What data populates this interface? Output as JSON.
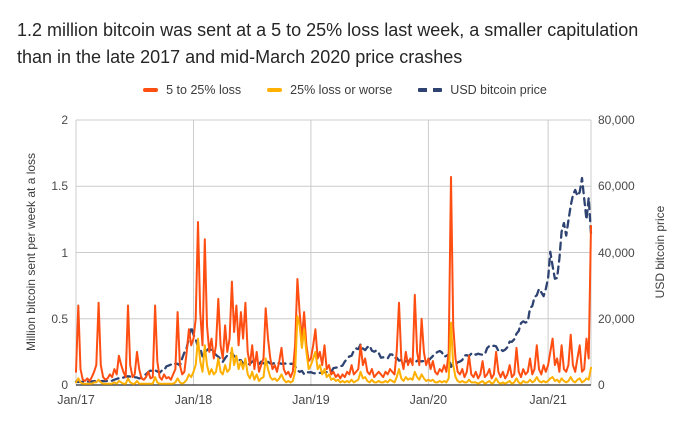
{
  "title": "1.2 million bitcoin was sent at a 5 to 25% loss last week, a smaller capitulation than in the late 2017 and mid-March 2020 price crashes",
  "colors": {
    "grid": "#cccccc",
    "axis_line": "#2b2b2b",
    "text": "#333333",
    "background": "#ffffff"
  },
  "chart_data": {
    "type": "line",
    "title": "1.2 million bitcoin was sent at a 5 to 25% loss last week, a smaller capitulation than in the late 2017 and mid-March 2020 price crashes",
    "grid": true,
    "legend_position": "top",
    "x": {
      "unit": "week",
      "start": "Jan 2017",
      "end": "May 2021",
      "tick_labels": [
        "Jan/17",
        "Jan/18",
        "Jan/19",
        "Jan/20",
        "Jan/21"
      ],
      "tick_week_index": [
        0,
        52,
        104,
        156,
        209
      ],
      "total_weeks": 229
    },
    "y_left": {
      "label": "Million bitcoin sent per week at a loss",
      "ticks": [
        "0",
        "0.5",
        "1",
        "1.5",
        "2"
      ],
      "range": [
        0,
        2
      ]
    },
    "y_right": {
      "label": "USD bitcoin price",
      "ticks": [
        "0",
        "20,000",
        "40,000",
        "60,000",
        "80,000"
      ],
      "range": [
        0,
        80000
      ]
    },
    "series": [
      {
        "name": "5 to 25% loss",
        "color": "#ff4e12",
        "line_style": "solid",
        "axis": "left",
        "values": [
          0.1,
          0.6,
          0.12,
          0.04,
          0.03,
          0.05,
          0.03,
          0.06,
          0.1,
          0.15,
          0.62,
          0.15,
          0.06,
          0.04,
          0.05,
          0.08,
          0.06,
          0.12,
          0.08,
          0.22,
          0.15,
          0.1,
          0.06,
          0.6,
          0.15,
          0.06,
          0.08,
          0.25,
          0.12,
          0.05,
          0.04,
          0.06,
          0.1,
          0.05,
          0.06,
          0.6,
          0.18,
          0.06,
          0.04,
          0.08,
          0.05,
          0.06,
          0.04,
          0.08,
          0.12,
          0.55,
          0.15,
          0.08,
          0.1,
          0.25,
          0.42,
          0.3,
          0.35,
          0.5,
          1.23,
          0.55,
          0.3,
          1.1,
          0.45,
          0.25,
          0.35,
          0.2,
          0.3,
          0.65,
          0.3,
          0.2,
          0.45,
          0.25,
          0.35,
          0.78,
          0.4,
          0.6,
          0.3,
          0.55,
          0.35,
          0.62,
          0.25,
          0.15,
          0.3,
          0.12,
          0.25,
          0.1,
          0.15,
          0.2,
          0.58,
          0.35,
          0.2,
          0.12,
          0.15,
          0.1,
          0.18,
          0.28,
          0.12,
          0.08,
          0.1,
          0.06,
          0.1,
          0.3,
          0.8,
          0.55,
          0.35,
          0.55,
          0.3,
          0.18,
          0.2,
          0.3,
          0.42,
          0.2,
          0.25,
          0.15,
          0.3,
          0.12,
          0.15,
          0.08,
          0.1,
          0.06,
          0.08,
          0.05,
          0.08,
          0.06,
          0.1,
          0.08,
          0.15,
          0.08,
          0.1,
          0.12,
          0.3,
          0.15,
          0.2,
          0.1,
          0.08,
          0.12,
          0.06,
          0.08,
          0.1,
          0.08,
          0.06,
          0.1,
          0.08,
          0.12,
          0.1,
          0.08,
          0.25,
          0.62,
          0.2,
          0.12,
          0.25,
          0.15,
          0.2,
          0.15,
          0.68,
          0.25,
          0.15,
          0.5,
          0.25,
          0.15,
          0.2,
          0.12,
          0.18,
          0.1,
          0.08,
          0.12,
          0.1,
          0.15,
          0.1,
          0.25,
          1.57,
          0.45,
          0.2,
          0.1,
          0.08,
          0.12,
          0.06,
          0.1,
          0.22,
          0.08,
          0.06,
          0.1,
          0.05,
          0.08,
          0.18,
          0.06,
          0.08,
          0.12,
          0.05,
          0.08,
          0.25,
          0.1,
          0.06,
          0.1,
          0.05,
          0.08,
          0.15,
          0.06,
          0.08,
          0.28,
          0.1,
          0.06,
          0.12,
          0.08,
          0.1,
          0.2,
          0.08,
          0.12,
          0.3,
          0.12,
          0.08,
          0.15,
          0.1,
          0.15,
          0.25,
          0.35,
          0.15,
          0.2,
          0.1,
          0.3,
          0.12,
          0.1,
          0.15,
          0.38,
          0.15,
          0.1,
          0.2,
          0.3,
          0.1,
          0.12,
          0.35,
          0.2,
          1.2
        ]
      },
      {
        "name": "25% loss or worse",
        "color": "#ffb000",
        "line_style": "solid",
        "axis": "left",
        "values": [
          0.02,
          0.05,
          0.02,
          0.01,
          0.01,
          0.01,
          0.01,
          0.01,
          0.02,
          0.02,
          0.04,
          0.02,
          0.01,
          0.01,
          0.01,
          0.01,
          0.01,
          0.02,
          0.01,
          0.03,
          0.02,
          0.01,
          0.01,
          0.05,
          0.02,
          0.01,
          0.01,
          0.03,
          0.01,
          0.01,
          0.01,
          0.01,
          0.01,
          0.01,
          0.01,
          0.06,
          0.02,
          0.01,
          0.01,
          0.01,
          0.01,
          0.01,
          0.01,
          0.01,
          0.02,
          0.05,
          0.02,
          0.01,
          0.02,
          0.04,
          0.08,
          0.06,
          0.1,
          0.15,
          0.35,
          0.18,
          0.1,
          0.3,
          0.15,
          0.08,
          0.12,
          0.08,
          0.1,
          0.2,
          0.1,
          0.08,
          0.15,
          0.1,
          0.12,
          0.28,
          0.15,
          0.22,
          0.12,
          0.18,
          0.12,
          0.2,
          0.08,
          0.05,
          0.1,
          0.04,
          0.08,
          0.03,
          0.05,
          0.06,
          0.2,
          0.12,
          0.06,
          0.04,
          0.05,
          0.03,
          0.05,
          0.08,
          0.04,
          0.02,
          0.03,
          0.02,
          0.03,
          0.1,
          0.52,
          0.45,
          0.28,
          0.42,
          0.25,
          0.12,
          0.15,
          0.2,
          0.25,
          0.12,
          0.15,
          0.08,
          0.12,
          0.06,
          0.08,
          0.04,
          0.05,
          0.03,
          0.04,
          0.02,
          0.03,
          0.02,
          0.03,
          0.02,
          0.04,
          0.02,
          0.03,
          0.04,
          0.1,
          0.05,
          0.06,
          0.03,
          0.02,
          0.04,
          0.02,
          0.02,
          0.03,
          0.02,
          0.02,
          0.03,
          0.02,
          0.04,
          0.03,
          0.02,
          0.06,
          0.12,
          0.05,
          0.03,
          0.06,
          0.04,
          0.05,
          0.04,
          0.1,
          0.06,
          0.04,
          0.08,
          0.05,
          0.03,
          0.04,
          0.03,
          0.04,
          0.02,
          0.02,
          0.03,
          0.02,
          0.03,
          0.02,
          0.05,
          0.47,
          0.15,
          0.06,
          0.03,
          0.02,
          0.03,
          0.02,
          0.02,
          0.04,
          0.02,
          0.02,
          0.02,
          0.01,
          0.02,
          0.03,
          0.01,
          0.02,
          0.03,
          0.01,
          0.02,
          0.05,
          0.02,
          0.01,
          0.02,
          0.01,
          0.02,
          0.03,
          0.01,
          0.02,
          0.05,
          0.02,
          0.01,
          0.03,
          0.02,
          0.02,
          0.04,
          0.02,
          0.03,
          0.06,
          0.03,
          0.02,
          0.03,
          0.02,
          0.03,
          0.05,
          0.06,
          0.03,
          0.04,
          0.02,
          0.05,
          0.03,
          0.02,
          0.03,
          0.06,
          0.03,
          0.02,
          0.04,
          0.05,
          0.02,
          0.03,
          0.05,
          0.04,
          0.13
        ]
      },
      {
        "name": "USD bitcoin price",
        "color": "#2e4372",
        "line_style": "dashed",
        "axis": "right",
        "values": [
          1000,
          900,
          950,
          980,
          1020,
          1050,
          1050,
          1080,
          1150,
          1200,
          1100,
          1180,
          1220,
          1180,
          1200,
          1250,
          1300,
          1600,
          1850,
          2050,
          1950,
          2250,
          2450,
          2650,
          2550,
          2500,
          2350,
          2250,
          1950,
          2250,
          2750,
          3250,
          3900,
          4350,
          4200,
          4400,
          4100,
          3700,
          4350,
          4400,
          5650,
          5850,
          6150,
          5950,
          6450,
          6400,
          5900,
          8050,
          9850,
          11250,
          14200,
          17500,
          15200,
          13800,
          11600,
          11200,
          8600,
          9900,
          10500,
          11100,
          10400,
          9800,
          9100,
          8500,
          7900,
          7000,
          8100,
          8900,
          9350,
          9700,
          8700,
          8400,
          7600,
          7500,
          6450,
          6700,
          6150,
          6400,
          7050,
          7450,
          6800,
          6300,
          7050,
          6550,
          6300,
          7000,
          6500,
          6400,
          6700,
          6500,
          6600,
          6400,
          6500,
          6450,
          6350,
          6400,
          6400,
          5600,
          4400,
          4000,
          4250,
          3300,
          3850,
          3800,
          3850,
          3600,
          3500,
          3600,
          3650,
          3700,
          3900,
          3900,
          4000,
          4050,
          5100,
          5250,
          5300,
          5650,
          5850,
          7050,
          7950,
          8600,
          8850,
          10350,
          11050,
          10850,
          12300,
          11000,
          10550,
          11400,
          11850,
          10350,
          10050,
          10450,
          9700,
          8250,
          8350,
          8250,
          8000,
          9250,
          9200,
          8050,
          8300,
          7350,
          7550,
          7250,
          7150,
          7300,
          7150,
          7100,
          6700,
          7350,
          7200,
          7150,
          7250,
          7200,
          7350,
          8050,
          8750,
          9350,
          9950,
          10250,
          9850,
          8550,
          8800,
          9150,
          5450,
          6250,
          6200,
          6850,
          7100,
          7550,
          8950,
          9000,
          8750,
          9450,
          9700,
          9150,
          9450,
          9250,
          9150,
          9200,
          11100,
          11800,
          11600,
          11850,
          11650,
          10300,
          10750,
          10250,
          10700,
          11400,
          13100,
          13050,
          13800,
          15500,
          16300,
          18700,
          19200,
          18850,
          19150,
          23200,
          23850,
          26500,
          27100,
          29000,
          28000,
          26800,
          29000,
          32200,
          40200,
          35900,
          32100,
          32300,
          38200,
          46300,
          48900,
          45100,
          49600,
          54100,
          57300,
          58900,
          57100,
          58200,
          62500,
          56200,
          49900,
          56500,
          45600
        ]
      }
    ]
  }
}
